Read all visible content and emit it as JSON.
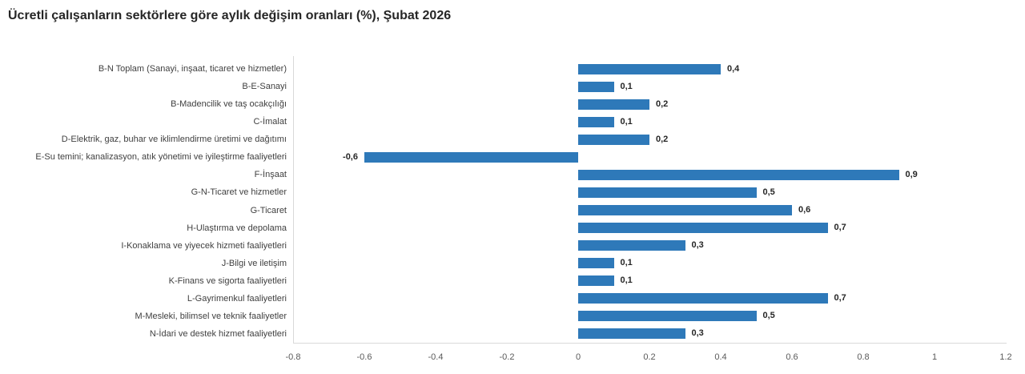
{
  "title": "Ücretli çalışanların sektörlere göre aylık değişim oranları (%), Şubat 2026",
  "chart_data": {
    "type": "bar",
    "orientation": "horizontal",
    "title": "Ücretli çalışanların sektörlere göre aylık değişim oranları (%), Şubat 2026",
    "categories": [
      "B-N Toplam (Sanayi, inşaat, ticaret ve hizmetler)",
      "B-E-Sanayi",
      "B-Madencilik ve taş ocakçılığı",
      "C-İmalat",
      "D-Elektrik, gaz, buhar ve iklimlendirme üretimi ve dağıtımı",
      "E-Su temini; kanalizasyon, atık yönetimi ve iyileştirme faaliyetleri",
      "F-İnşaat",
      "G-N-Ticaret ve hizmetler",
      "G-Ticaret",
      "H-Ulaştırma ve depolama",
      "I-Konaklama ve yiyecek hizmeti faaliyetleri",
      "J-Bilgi ve iletişim",
      "K-Finans ve sigorta faaliyetleri",
      "L-Gayrimenkul faaliyetleri",
      "M-Mesleki, bilimsel ve teknik faaliyetler",
      "N-İdari ve destek hizmet faaliyetleri"
    ],
    "values": [
      0.4,
      0.1,
      0.2,
      0.1,
      0.2,
      -0.6,
      0.9,
      0.5,
      0.6,
      0.7,
      0.3,
      0.1,
      0.1,
      0.7,
      0.5,
      0.3
    ],
    "value_labels": [
      "0,4",
      "0,1",
      "0,2",
      "0,1",
      "0,2",
      "-0,6",
      "0,9",
      "0,5",
      "0,6",
      "0,7",
      "0,3",
      "0,1",
      "0,1",
      "0,7",
      "0,5",
      "0,3"
    ],
    "xlabel": "",
    "ylabel": "",
    "xlim": [
      -0.8,
      1.2
    ],
    "x_ticks": [
      -0.8,
      -0.6,
      -0.4,
      -0.2,
      0,
      0.2,
      0.4,
      0.6,
      0.8,
      1,
      1.2
    ],
    "x_tick_labels": [
      "-0.8",
      "-0.6",
      "-0.4",
      "-0.2",
      "0",
      "0.2",
      "0.4",
      "0.6",
      "0.8",
      "1",
      "1.2"
    ],
    "grid": false,
    "legend_position": "none",
    "bar_color": "#2E79B9",
    "axis_line_color": "#d9d9d9",
    "title_color": "#262626",
    "label_color": "#404040",
    "tick_color": "#595959"
  }
}
